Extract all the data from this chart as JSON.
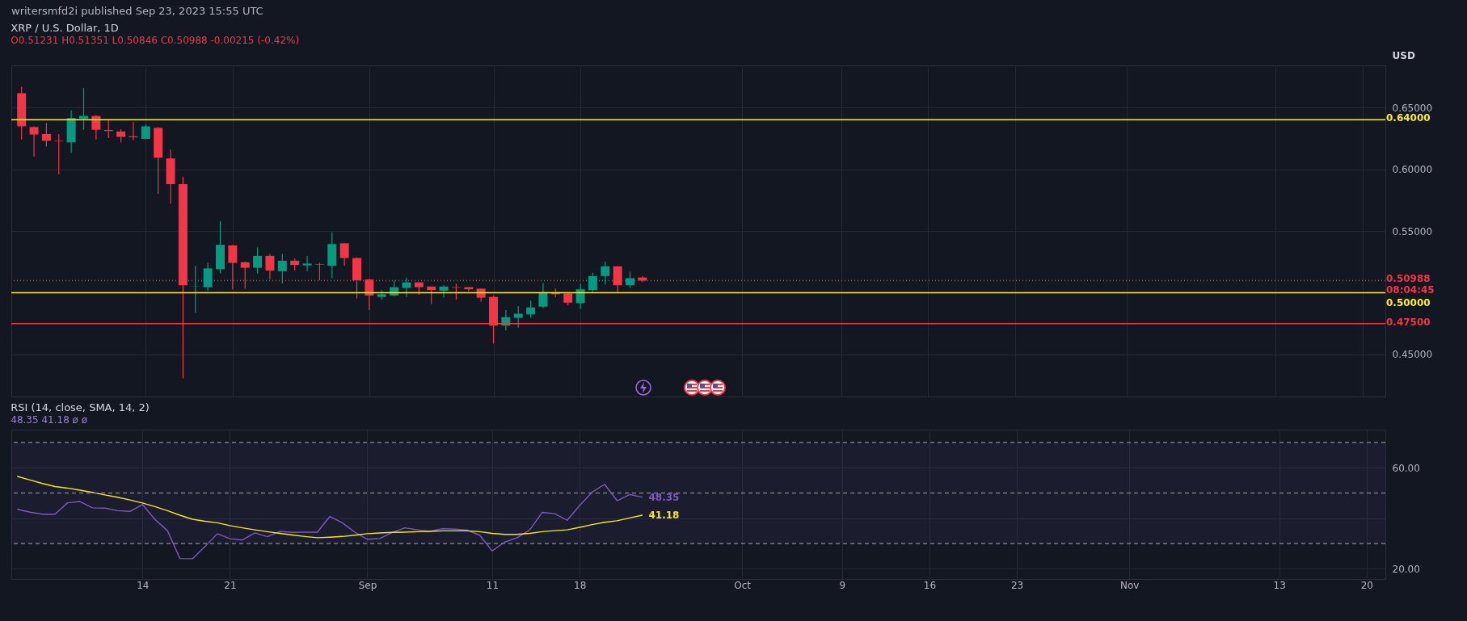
{
  "chart_data": [
    {
      "type": "candlestick",
      "title": "XRP / U.S. Dollar, 1D",
      "subtitle": "O0.51231 H0.51351 L0.50846 C0.50988 -0.00215 (-0.42%)",
      "ylabel": "USD",
      "annotations": [
        "writersmfd2i published Sep 23, 2023 15:55 UTC"
      ],
      "x": [
        "2023-08-04",
        "2023-08-05",
        "2023-08-06",
        "2023-08-07",
        "2023-08-08",
        "2023-08-09",
        "2023-08-10",
        "2023-08-11",
        "2023-08-12",
        "2023-08-13",
        "2023-08-14",
        "2023-08-15",
        "2023-08-16",
        "2023-08-17",
        "2023-08-18",
        "2023-08-19",
        "2023-08-20",
        "2023-08-21",
        "2023-08-22",
        "2023-08-23",
        "2023-08-24",
        "2023-08-25",
        "2023-08-26",
        "2023-08-27",
        "2023-08-28",
        "2023-08-29",
        "2023-08-30",
        "2023-08-31",
        "2023-09-01",
        "2023-09-02",
        "2023-09-03",
        "2023-09-04",
        "2023-09-05",
        "2023-09-06",
        "2023-09-07",
        "2023-09-08",
        "2023-09-09",
        "2023-09-10",
        "2023-09-11",
        "2023-09-12",
        "2023-09-13",
        "2023-09-14",
        "2023-09-15",
        "2023-09-16",
        "2023-09-17",
        "2023-09-18",
        "2023-09-19",
        "2023-09-20",
        "2023-09-21",
        "2023-09-22",
        "2023-09-23"
      ],
      "ohlc": [
        [
          0.6615,
          0.6666,
          0.624,
          0.6347
        ],
        [
          0.6341,
          0.6347,
          0.6099,
          0.6281
        ],
        [
          0.6285,
          0.6375,
          0.6183,
          0.623
        ],
        [
          0.623,
          0.6285,
          0.5958,
          0.6226
        ],
        [
          0.6217,
          0.6476,
          0.6132,
          0.6414
        ],
        [
          0.6409,
          0.6657,
          0.6319,
          0.6431
        ],
        [
          0.6431,
          0.6437,
          0.624,
          0.6319
        ],
        [
          0.6317,
          0.6397,
          0.6251,
          0.6309
        ],
        [
          0.6305,
          0.6322,
          0.6217,
          0.6262
        ],
        [
          0.6266,
          0.638,
          0.6234,
          0.6258
        ],
        [
          0.6245,
          0.6362,
          0.624,
          0.6347
        ],
        [
          0.6335,
          0.6341,
          0.58,
          0.6093
        ],
        [
          0.6087,
          0.6159,
          0.5721,
          0.5879
        ],
        [
          0.5879,
          0.5939,
          0.4306,
          0.5061
        ],
        [
          0.5052,
          0.5219,
          0.4838,
          0.5054
        ],
        [
          0.5045,
          0.5242,
          0.5013,
          0.5197
        ],
        [
          0.5191,
          0.558,
          0.5157,
          0.5388
        ],
        [
          0.5383,
          0.5388,
          0.5028,
          0.5242
        ],
        [
          0.5247,
          0.5253,
          0.5033,
          0.5202
        ],
        [
          0.5202,
          0.5366,
          0.5157,
          0.5298
        ],
        [
          0.5298,
          0.5313,
          0.5107,
          0.518
        ],
        [
          0.5174,
          0.5315,
          0.5075,
          0.5259
        ],
        [
          0.5259,
          0.5276,
          0.518,
          0.5225
        ],
        [
          0.5221,
          0.5298,
          0.5174,
          0.5236
        ],
        [
          0.5231,
          0.5242,
          0.5101,
          0.5227
        ],
        [
          0.5219,
          0.549,
          0.5118,
          0.5394
        ],
        [
          0.54,
          0.54,
          0.5219,
          0.5281
        ],
        [
          0.5281,
          0.5287,
          0.4954,
          0.5101
        ],
        [
          0.5107,
          0.5112,
          0.4859,
          0.4977
        ],
        [
          0.4966,
          0.5022,
          0.4943,
          0.4988
        ],
        [
          0.4977,
          0.5101,
          0.4971,
          0.5045
        ],
        [
          0.5039,
          0.5123,
          0.4966,
          0.5084
        ],
        [
          0.5084,
          0.5084,
          0.4983,
          0.5045
        ],
        [
          0.505,
          0.505,
          0.4909,
          0.5022
        ],
        [
          0.5016,
          0.5061,
          0.496,
          0.505
        ],
        [
          0.5045,
          0.5073,
          0.4943,
          0.5041
        ],
        [
          0.5045,
          0.5045,
          0.5011,
          0.5028
        ],
        [
          0.5033,
          0.5033,
          0.4926,
          0.496
        ],
        [
          0.4966,
          0.4977,
          0.4588,
          0.4735
        ],
        [
          0.4735,
          0.4859,
          0.4695,
          0.4802
        ],
        [
          0.4797,
          0.4892,
          0.4718,
          0.483
        ],
        [
          0.4825,
          0.4937,
          0.4797,
          0.4881
        ],
        [
          0.4887,
          0.5078,
          0.4875,
          0.5005
        ],
        [
          0.5005,
          0.5033,
          0.4966,
          0.4988
        ],
        [
          0.4994,
          0.4999,
          0.4898,
          0.492
        ],
        [
          0.4915,
          0.5073,
          0.487,
          0.5028
        ],
        [
          0.5022,
          0.5163,
          0.5005,
          0.5135
        ],
        [
          0.5135,
          0.5253,
          0.5067,
          0.5214
        ],
        [
          0.5214,
          0.5214,
          0.4999,
          0.5061
        ],
        [
          0.5061,
          0.5169,
          0.5039,
          0.5118
        ],
        [
          0.51231,
          0.51351,
          0.50846,
          0.50988
        ]
      ],
      "colors": [
        "#f23645",
        "#f23645",
        "#f23645",
        "#f23645",
        "#089981",
        "#089981",
        "#f23645",
        "#f23645",
        "#f23645",
        "#f23645",
        "#089981",
        "#f23645",
        "#f23645",
        "#f23645",
        "#089981",
        "#089981",
        "#089981",
        "#f23645",
        "#f23645",
        "#089981",
        "#f23645",
        "#089981",
        "#f23645",
        "#089981",
        "#f23645",
        "#089981",
        "#f23645",
        "#f23645",
        "#f23645",
        "#089981",
        "#089981",
        "#089981",
        "#f23645",
        "#f23645",
        "#089981",
        "#f23645",
        "#f23645",
        "#f23645",
        "#f23645",
        "#089981",
        "#089981",
        "#089981",
        "#089981",
        "#f23645",
        "#f23645",
        "#089981",
        "#089981",
        "#089981",
        "#f23645",
        "#089981",
        "#f23645"
      ],
      "xlim": [
        "2023-08-03T12:00",
        "2023-11-21T12:00"
      ],
      "xticks": [
        {
          "value": "2023-08-14",
          "label": null
        },
        {
          "value": "2023-08-21",
          "label": null
        },
        {
          "value": "2023-09-01",
          "label": null
        },
        {
          "value": "2023-09-11",
          "label": null
        },
        {
          "value": "2023-09-18",
          "label": null
        },
        {
          "value": "2023-10-01",
          "label": null
        },
        {
          "value": "2023-10-09",
          "label": null
        },
        {
          "value": "2023-10-16",
          "label": null
        },
        {
          "value": "2023-10-23",
          "label": null
        },
        {
          "value": "2023-11-01",
          "label": null
        },
        {
          "value": "2023-11-13",
          "label": null
        },
        {
          "value": "2023-11-20",
          "label": null
        }
      ],
      "ylim": [
        0.416,
        0.684
      ],
      "yticks": [
        {
          "value": 0.45,
          "label": "0.45000"
        },
        {
          "value": 0.55,
          "label": "0.55000"
        },
        {
          "value": 0.6,
          "label": "0.60000"
        },
        {
          "value": 0.65,
          "label": "0.65000"
        }
      ],
      "grid": true,
      "tick_labels": "y",
      "ref_lines": [
        {
          "axis": "y",
          "value": 0.64,
          "label": "0.64000",
          "color": "#ffeb3b",
          "line_style": "solid"
        },
        {
          "axis": "y",
          "value": 0.5,
          "label": "0.50000",
          "color": "#ffeb3b",
          "line_style": "solid"
        },
        {
          "axis": "y",
          "value": 0.475,
          "label": "0.47500",
          "color": "#f23645",
          "line_style": "solid"
        },
        {
          "axis": "y",
          "value": 0.50988,
          "label": "0.50988\n08:04:45",
          "color": "#f23645",
          "line_style": "dotted"
        }
      ]
    },
    {
      "type": "line",
      "title": "RSI (14, close, SMA, 14, 2)",
      "subtitle": "48.35  41.18  ø  ø",
      "x": [
        "2023-08-04",
        "2023-08-05",
        "2023-08-06",
        "2023-08-07",
        "2023-08-08",
        "2023-08-09",
        "2023-08-10",
        "2023-08-11",
        "2023-08-12",
        "2023-08-13",
        "2023-08-14",
        "2023-08-15",
        "2023-08-16",
        "2023-08-17",
        "2023-08-18",
        "2023-08-19",
        "2023-08-20",
        "2023-08-21",
        "2023-08-22",
        "2023-08-23",
        "2023-08-24",
        "2023-08-25",
        "2023-08-26",
        "2023-08-27",
        "2023-08-28",
        "2023-08-29",
        "2023-08-30",
        "2023-08-31",
        "2023-09-01",
        "2023-09-02",
        "2023-09-03",
        "2023-09-04",
        "2023-09-05",
        "2023-09-06",
        "2023-09-07",
        "2023-09-08",
        "2023-09-09",
        "2023-09-10",
        "2023-09-11",
        "2023-09-12",
        "2023-09-13",
        "2023-09-14",
        "2023-09-15",
        "2023-09-16",
        "2023-09-17",
        "2023-09-18",
        "2023-09-19",
        "2023-09-20",
        "2023-09-21",
        "2023-09-22",
        "2023-09-23"
      ],
      "series": [
        {
          "color": "#7e57c2",
          "value_labels": [
            null,
            null,
            null,
            null,
            null,
            null,
            null,
            null,
            null,
            null,
            null,
            null,
            null,
            null,
            null,
            null,
            null,
            null,
            null,
            null,
            null,
            null,
            null,
            null,
            null,
            null,
            null,
            null,
            null,
            null,
            null,
            null,
            null,
            null,
            null,
            null,
            null,
            null,
            null,
            null,
            null,
            null,
            null,
            null,
            null,
            null,
            null,
            null,
            null,
            null,
            "48.35"
          ],
          "values": [
            43.5,
            42.4,
            41.6,
            41.6,
            46.1,
            46.6,
            44.1,
            44.0,
            43.0,
            42.7,
            45.4,
            39.5,
            35.1,
            24.1,
            24.0,
            28.8,
            33.9,
            31.9,
            31.4,
            34.2,
            32.7,
            34.8,
            34.4,
            34.5,
            34.5,
            40.7,
            38.2,
            34.5,
            31.7,
            32.0,
            34.4,
            36.2,
            35.4,
            34.8,
            35.9,
            35.7,
            35.3,
            33.3,
            27.1,
            30.6,
            32.3,
            35.4,
            42.3,
            41.8,
            39.2,
            45.0,
            50.3,
            53.4,
            46.9,
            49.4,
            48.35
          ]
        },
        {
          "color": "#f5e71f",
          "value_labels": [
            null,
            null,
            null,
            null,
            null,
            null,
            null,
            null,
            null,
            null,
            null,
            null,
            null,
            null,
            null,
            null,
            null,
            null,
            null,
            null,
            null,
            null,
            null,
            null,
            null,
            null,
            null,
            null,
            null,
            null,
            null,
            null,
            null,
            null,
            null,
            null,
            null,
            null,
            null,
            null,
            null,
            null,
            null,
            null,
            null,
            null,
            null,
            null,
            null,
            null,
            "41.18"
          ],
          "values": [
            56.5,
            55.1,
            53.7,
            52.5,
            51.9,
            51.1,
            50.2,
            49.2,
            48.3,
            47.2,
            46.0,
            44.6,
            43.0,
            41.2,
            39.6,
            38.8,
            38.2,
            37.1,
            36.2,
            35.4,
            34.7,
            34.0,
            33.4,
            32.8,
            32.3,
            32.5,
            32.8,
            33.3,
            33.9,
            34.2,
            34.4,
            34.5,
            34.7,
            34.8,
            35.0,
            35.0,
            35.0,
            34.7,
            34.0,
            33.6,
            33.6,
            34.0,
            34.7,
            35.1,
            35.4,
            36.4,
            37.5,
            38.4,
            39.0,
            40.1,
            41.18
          ]
        }
      ],
      "xlim": [
        "2023-08-03T12:00",
        "2023-11-21T12:00"
      ],
      "xticks": [
        {
          "value": "2023-08-14",
          "label": "14"
        },
        {
          "value": "2023-08-21",
          "label": "21"
        },
        {
          "value": "2023-09-01",
          "label": "Sep"
        },
        {
          "value": "2023-09-11",
          "label": "11"
        },
        {
          "value": "2023-09-18",
          "label": "18"
        },
        {
          "value": "2023-10-01",
          "label": "Oct"
        },
        {
          "value": "2023-10-09",
          "label": "9"
        },
        {
          "value": "2023-10-16",
          "label": "16"
        },
        {
          "value": "2023-10-23",
          "label": "23"
        },
        {
          "value": "2023-11-01",
          "label": "Nov"
        },
        {
          "value": "2023-11-13",
          "label": "13"
        },
        {
          "value": "2023-11-20",
          "label": "20"
        }
      ],
      "ylim": [
        16,
        75
      ],
      "yticks": [
        {
          "value": 20,
          "label": "20.00"
        },
        {
          "value": 40,
          "label": null
        },
        {
          "value": 60,
          "label": "60.00"
        }
      ],
      "grid": true,
      "bands": [
        {
          "axis": "y",
          "from": 30,
          "to": 70,
          "color": "#7e57c2"
        }
      ],
      "ref_lines": [
        {
          "axis": "y",
          "value": 70,
          "color": "#787b86",
          "line_style": "dashed"
        },
        {
          "axis": "y",
          "value": 50,
          "color": "#787b86",
          "line_style": "dashed"
        },
        {
          "axis": "y",
          "value": 30,
          "color": "#787b86",
          "line_style": "dashed"
        }
      ]
    }
  ]
}
